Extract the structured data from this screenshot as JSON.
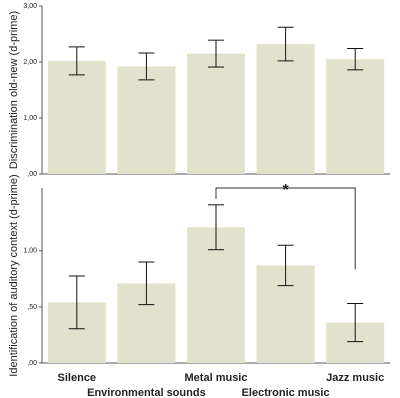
{
  "chart_data": [
    {
      "type": "bar",
      "y_label": "Discrimination old-new (d-prime)",
      "values": [
        2.02,
        1.92,
        2.15,
        2.32,
        2.05
      ],
      "errors": [
        0.25,
        0.24,
        0.24,
        0.3,
        0.19
      ],
      "color": "#e2e2cc",
      "ylim": [
        0,
        3
      ],
      "yticks": [
        {
          "value": 0,
          "label": ",00"
        },
        {
          "value": 1,
          "label": "1,00"
        },
        {
          "value": 2,
          "label": "2,00"
        },
        {
          "value": 3,
          "label": "3,00"
        }
      ]
    },
    {
      "type": "bar",
      "y_label": "Identification of auditory context (d-prime)",
      "categories": [
        "Silence",
        "Environmental sounds",
        "Metal music",
        "Electronic music",
        "Jazz music"
      ],
      "values": [
        0.54,
        0.71,
        1.21,
        0.87,
        0.36
      ],
      "errors": [
        0.235,
        0.19,
        0.2,
        0.18,
        0.17
      ],
      "color": "#e2e2cc",
      "ylim": [
        0,
        1.56
      ],
      "yticks": [
        {
          "value": 0,
          "label": ",00"
        },
        {
          "value": 0.5,
          "label": ",50"
        },
        {
          "value": 1,
          "label": "1,00"
        }
      ],
      "annotation": "*"
    }
  ]
}
